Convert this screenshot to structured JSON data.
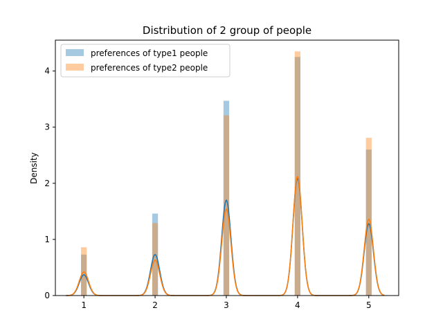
{
  "chart_data": {
    "type": "bar",
    "title": "Distribution of 2 group of people",
    "xlabel": "",
    "ylabel": "Density",
    "xlim": [
      0.6,
      5.42
    ],
    "ylim": [
      0,
      4.55
    ],
    "x_ticks": [
      1,
      2,
      3,
      4,
      5
    ],
    "y_ticks": [
      0,
      1,
      2,
      3,
      4
    ],
    "grid": false,
    "legend_position": "top-left",
    "bin_width": 0.08,
    "categories": [
      1,
      2,
      3,
      4,
      5
    ],
    "series": [
      {
        "name": "preferences of type1 people",
        "color": "#1f77b4",
        "hist_values": [
          0.73,
          1.46,
          3.47,
          4.25,
          2.6
        ],
        "kde_peaks": [
          0.37,
          0.73,
          1.7,
          2.09,
          1.28
        ]
      },
      {
        "name": "preferences of type2 people",
        "color": "#ff7f0e",
        "hist_values": [
          0.86,
          1.29,
          3.21,
          4.35,
          2.81
        ],
        "kde_peaks": [
          0.42,
          0.63,
          1.54,
          2.12,
          1.36
        ]
      }
    ],
    "kde_bandwidth": 0.065
  }
}
